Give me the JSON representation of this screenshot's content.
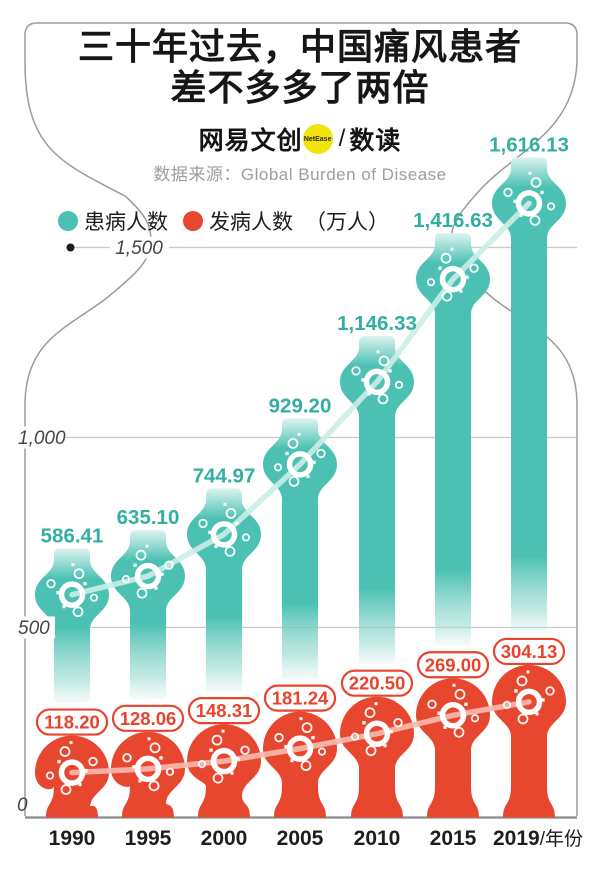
{
  "header": {
    "title_line1": "三十年过去，中国痛风患者",
    "title_line2": "差不多多了两倍",
    "brand_name": "网易文创",
    "brand_badge": "NetEase",
    "brand_divider": "/",
    "brand_sub": "数读",
    "source": "数据来源：Global Burden of Disease"
  },
  "legend": {
    "series1": "患病人数",
    "series2": "发病人数",
    "unit": "（万人）"
  },
  "colors": {
    "teal": "#4CC1B3",
    "teal_label": "#33AFA1",
    "teal_cap_light": "#DDF3F0",
    "teal_fade": "#C9EBE6",
    "red": "#E8472F",
    "red_label": "#E8432C",
    "grid": "#C9C9C9",
    "baseline": "#8A8A8A",
    "tick_text": "#454545",
    "x_text": "#1D1D1D",
    "frame": "#9B9B9B",
    "brand_yellow": "#F2E30D",
    "connector_teal": "rgba(203,237,231,0.9)",
    "connector_red": "rgba(246,184,176,0.92)"
  },
  "chart_data": {
    "type": "bar",
    "title": "三十年过去，中国痛风患者差不多多了两倍",
    "categories": [
      "1990",
      "1995",
      "2000",
      "2005",
      "2010",
      "2015",
      "2019"
    ],
    "x_axis_suffix": "/年份",
    "unit_label": "（万人）",
    "ylim": [
      0,
      1700
    ],
    "grid": true,
    "legend_position": "top-left",
    "y_ticks": [
      {
        "value": 0,
        "label": "0"
      },
      {
        "value": 500,
        "label": "500"
      },
      {
        "value": 1000,
        "label": "1,000"
      },
      {
        "value": 1500,
        "label": "1,500"
      }
    ],
    "series": [
      {
        "name": "患病人数",
        "values": [
          586.41,
          635.1,
          744.97,
          929.2,
          1146.33,
          1416.63,
          1616.13
        ],
        "labels": [
          "586.41",
          "635.10",
          "744.97",
          "929.20",
          "1,146.33",
          "1,416.63",
          "1,616.13"
        ]
      },
      {
        "name": "发病人数",
        "values": [
          118.2,
          128.06,
          148.31,
          181.24,
          220.5,
          269.0,
          304.13
        ],
        "labels": [
          "118.20",
          "128.06",
          "148.31",
          "181.24",
          "220.50",
          "269.00",
          "304.13"
        ]
      }
    ]
  }
}
